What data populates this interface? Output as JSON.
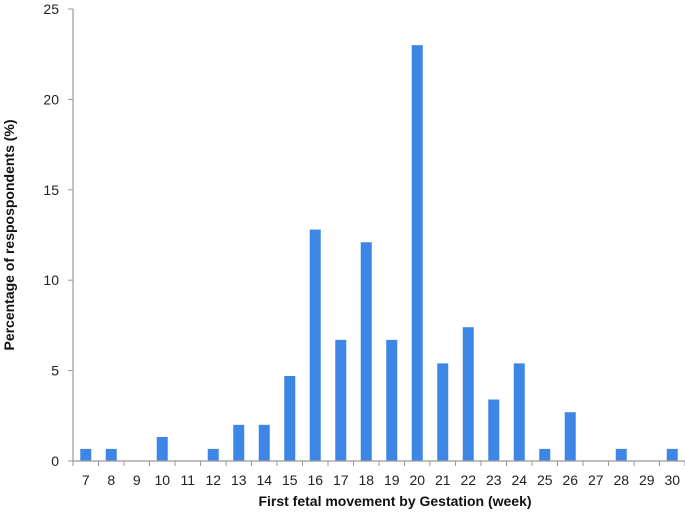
{
  "chart_data": {
    "type": "bar",
    "title": "",
    "xlabel": "First  fetal movement by Gestation (week)",
    "ylabel": "Percentage of respospondents (%)",
    "ylim": [
      0,
      25
    ],
    "yticks": [
      0,
      5,
      10,
      15,
      20,
      25
    ],
    "grid": false,
    "bar_color": "#3d86e6",
    "categories": [
      "7",
      "8",
      "9",
      "10",
      "11",
      "12",
      "13",
      "14",
      "15",
      "16",
      "17",
      "18",
      "19",
      "20",
      "21",
      "22",
      "23",
      "24",
      "25",
      "26",
      "27",
      "28",
      "29",
      "30"
    ],
    "values": [
      0.67,
      0.67,
      0,
      1.33,
      0,
      0.67,
      2.0,
      2.0,
      4.7,
      12.8,
      6.7,
      12.1,
      6.7,
      23.0,
      5.4,
      7.4,
      3.4,
      5.4,
      0.67,
      2.7,
      0,
      0.67,
      0,
      0.67
    ]
  }
}
